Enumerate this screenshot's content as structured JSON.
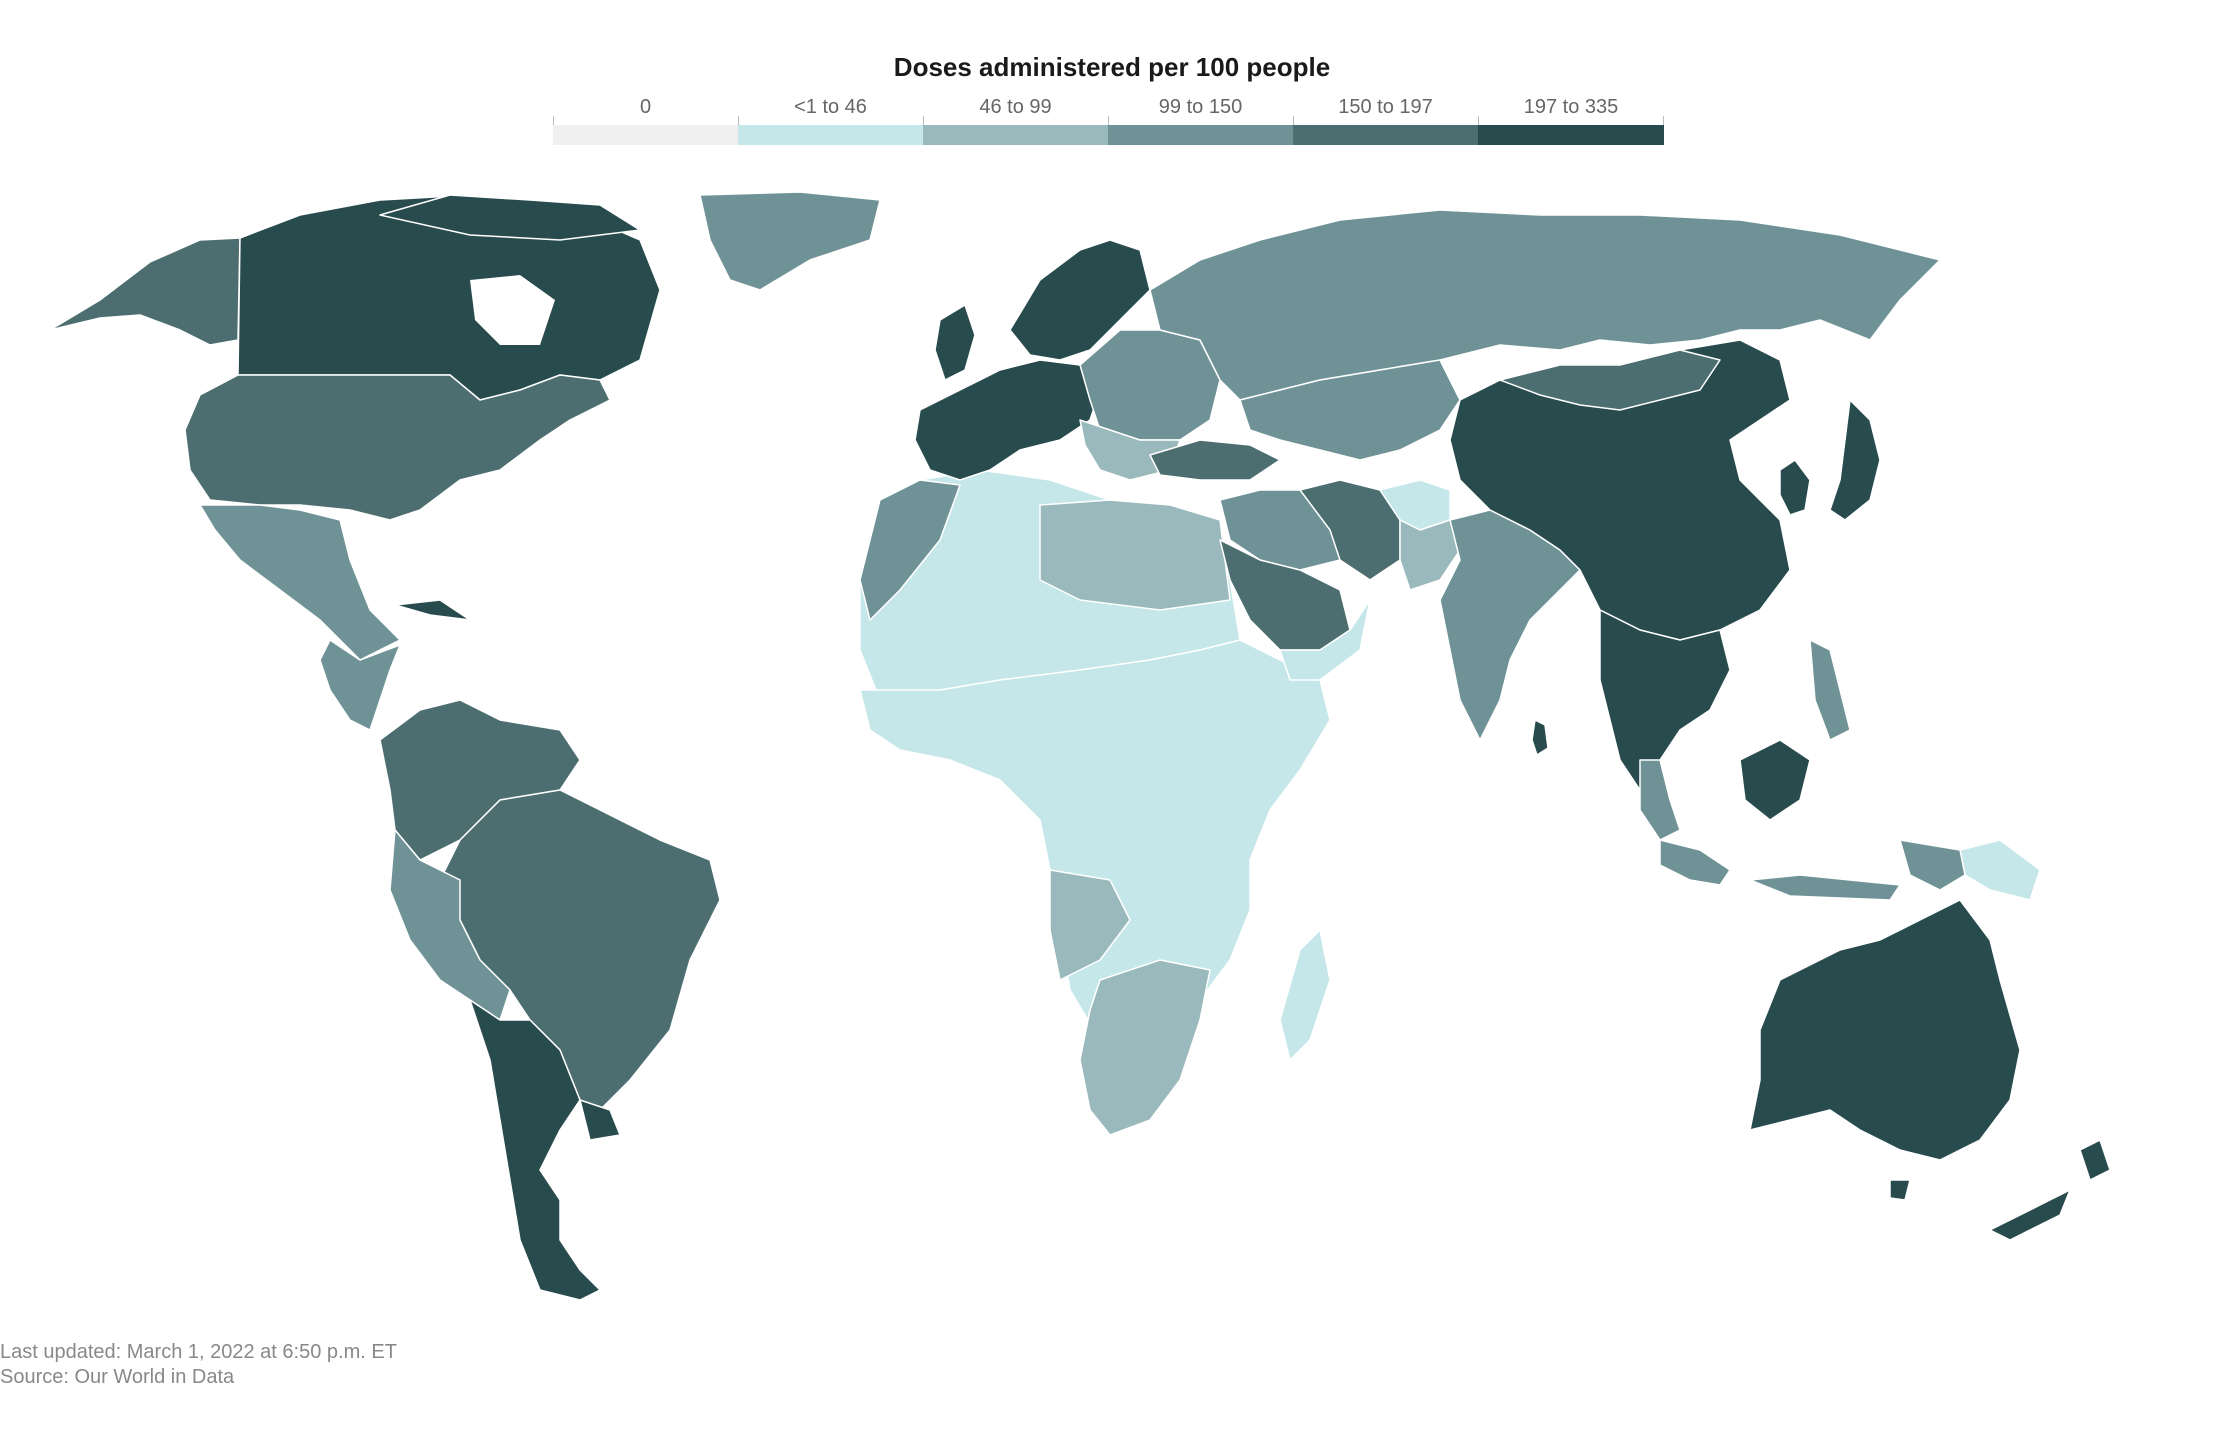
{
  "legend": {
    "title": "Doses administered per 100 people",
    "items": [
      {
        "label": "0",
        "color": "#f0f0f0"
      },
      {
        "label": "<1 to 46",
        "color": "#c5e7ea"
      },
      {
        "label": "46 to 99",
        "color": "#9ab9bc"
      },
      {
        "label": "99 to 150",
        "color": "#6f9296"
      },
      {
        "label": "150 to 197",
        "color": "#4d6e70"
      },
      {
        "label": "197 to 335",
        "color": "#284b4e"
      }
    ]
  },
  "footer": {
    "updated": "Last updated: March 1, 2022 at 6:50 p.m. ET",
    "source": "Source: Our World in Data"
  }
}
